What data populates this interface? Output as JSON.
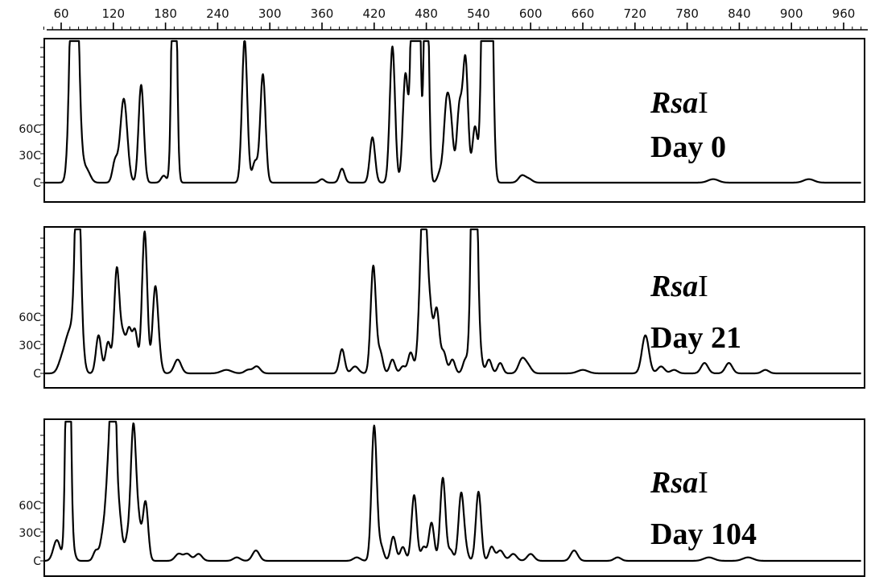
{
  "chart_data": {
    "type": "line",
    "xlim": [
      40,
      980
    ],
    "x_ticks": [
      60,
      120,
      180,
      240,
      300,
      360,
      420,
      480,
      540,
      600,
      660,
      720,
      780,
      840,
      900,
      960
    ],
    "x_tick_labels": [
      "60",
      "120",
      "180",
      "240",
      "300",
      "360",
      "420",
      "480",
      "540",
      "600",
      "660",
      "720",
      "780",
      "840",
      "900",
      "960"
    ],
    "ylim": [
      0,
      1600
    ],
    "y_ticks": [
      0,
      300,
      600
    ],
    "y_tick_labels": [
      "C",
      "30C",
      "60C"
    ],
    "grid": false,
    "panels": [
      {
        "enzyme_italic": "Rsa",
        "enzyme_suffix": "I",
        "day_label": "Day 0",
        "series": [
          {
            "peaks": [
              [
                75,
                2000,
                4
              ],
              [
                83,
                80,
                4
              ],
              [
                90,
                60,
                4
              ],
              [
                122,
                120,
                3
              ],
              [
                132,
                480,
                4
              ],
              [
                152,
                560,
                3
              ],
              [
                178,
                40,
                3
              ],
              [
                190,
                2000,
                2.5
              ],
              [
                271,
                820,
                3
              ],
              [
                283,
                120,
                3
              ],
              [
                292,
                620,
                3
              ],
              [
                360,
                20,
                3
              ],
              [
                383,
                80,
                3
              ],
              [
                418,
                260,
                3
              ],
              [
                441,
                780,
                3
              ],
              [
                456,
                620,
                3
              ],
              [
                466,
                2000,
                3
              ],
              [
                470,
                1900,
                2.5
              ],
              [
                480,
                1600,
                2.5
              ],
              [
                496,
                60,
                3
              ],
              [
                503,
                400,
                3
              ],
              [
                508,
                320,
                3
              ],
              [
                518,
                420,
                3
              ],
              [
                525,
                700,
                3
              ],
              [
                536,
                320,
                3
              ],
              [
                547,
                2000,
                3
              ],
              [
                553,
                2000,
                3
              ],
              [
                590,
                40,
                4
              ],
              [
                598,
                20,
                4
              ],
              [
                810,
                20,
                6
              ],
              [
                920,
                20,
                6
              ]
            ]
          }
        ]
      },
      {
        "enzyme_italic": "Rsa",
        "enzyme_suffix": "I",
        "day_label": "Day 21",
        "series": [
          {
            "peaks": [
              [
                60,
                60,
                4
              ],
              [
                66,
                120,
                4
              ],
              [
                72,
                200,
                4
              ],
              [
                79,
                1300,
                3
              ],
              [
                84,
                120,
                3
              ],
              [
                103,
                220,
                3
              ],
              [
                114,
                180,
                3
              ],
              [
                124,
                600,
                3
              ],
              [
                131,
                200,
                3
              ],
              [
                138,
                240,
                3
              ],
              [
                145,
                240,
                3
              ],
              [
                156,
                820,
                3
              ],
              [
                168,
                460,
                3
              ],
              [
                172,
                100,
                3
              ],
              [
                194,
                80,
                4
              ],
              [
                250,
                20,
                6
              ],
              [
                275,
                20,
                4
              ],
              [
                285,
                40,
                4
              ],
              [
                383,
                140,
                3
              ],
              [
                398,
                40,
                4
              ],
              [
                419,
                620,
                3
              ],
              [
                427,
                120,
                3
              ],
              [
                441,
                80,
                3
              ],
              [
                453,
                40,
                3
              ],
              [
                462,
                120,
                3
              ],
              [
                477,
                1100,
                4
              ],
              [
                485,
                240,
                3
              ],
              [
                492,
                360,
                3
              ],
              [
                500,
                120,
                3
              ],
              [
                510,
                80,
                3
              ],
              [
                525,
                80,
                3
              ],
              [
                535,
                2000,
                3
              ],
              [
                541,
                120,
                3
              ],
              [
                552,
                80,
                3
              ],
              [
                565,
                60,
                3
              ],
              [
                590,
                80,
                4
              ],
              [
                597,
                40,
                4
              ],
              [
                660,
                20,
                6
              ],
              [
                732,
                220,
                4
              ],
              [
                750,
                40,
                4
              ],
              [
                765,
                20,
                4
              ],
              [
                800,
                60,
                4
              ],
              [
                828,
                60,
                4
              ],
              [
                870,
                20,
                4
              ]
            ]
          }
        ]
      },
      {
        "enzyme_italic": "Rsa",
        "enzyme_suffix": "I",
        "day_label": "Day 104",
        "series": [
          {
            "peaks": [
              [
                55,
                120,
                4
              ],
              [
                68,
                2000,
                2.5
              ],
              [
                73,
                60,
                3
              ],
              [
                100,
                60,
                3
              ],
              [
                108,
                140,
                3
              ],
              [
                114,
                440,
                3
              ],
              [
                120,
                1300,
                3
              ],
              [
                127,
                240,
                3
              ],
              [
                136,
                120,
                3
              ],
              [
                143,
                760,
                3
              ],
              [
                149,
                200,
                3
              ],
              [
                157,
                340,
                3
              ],
              [
                195,
                40,
                4
              ],
              [
                205,
                40,
                4
              ],
              [
                218,
                40,
                4
              ],
              [
                262,
                20,
                4
              ],
              [
                284,
                60,
                4
              ],
              [
                400,
                20,
                4
              ],
              [
                420,
                780,
                3
              ],
              [
                428,
                80,
                3
              ],
              [
                442,
                140,
                3
              ],
              [
                453,
                80,
                3
              ],
              [
                466,
                380,
                3
              ],
              [
                477,
                80,
                3
              ],
              [
                486,
                220,
                3
              ],
              [
                499,
                480,
                3
              ],
              [
                508,
                60,
                3
              ],
              [
                520,
                380,
                3
              ],
              [
                525,
                60,
                3
              ],
              [
                540,
                400,
                3
              ],
              [
                555,
                80,
                3
              ],
              [
                565,
                60,
                4
              ],
              [
                580,
                40,
                4
              ],
              [
                600,
                40,
                4
              ],
              [
                650,
                60,
                4
              ],
              [
                700,
                20,
                4
              ],
              [
                805,
                20,
                6
              ],
              [
                850,
                20,
                6
              ]
            ]
          }
        ]
      }
    ]
  }
}
